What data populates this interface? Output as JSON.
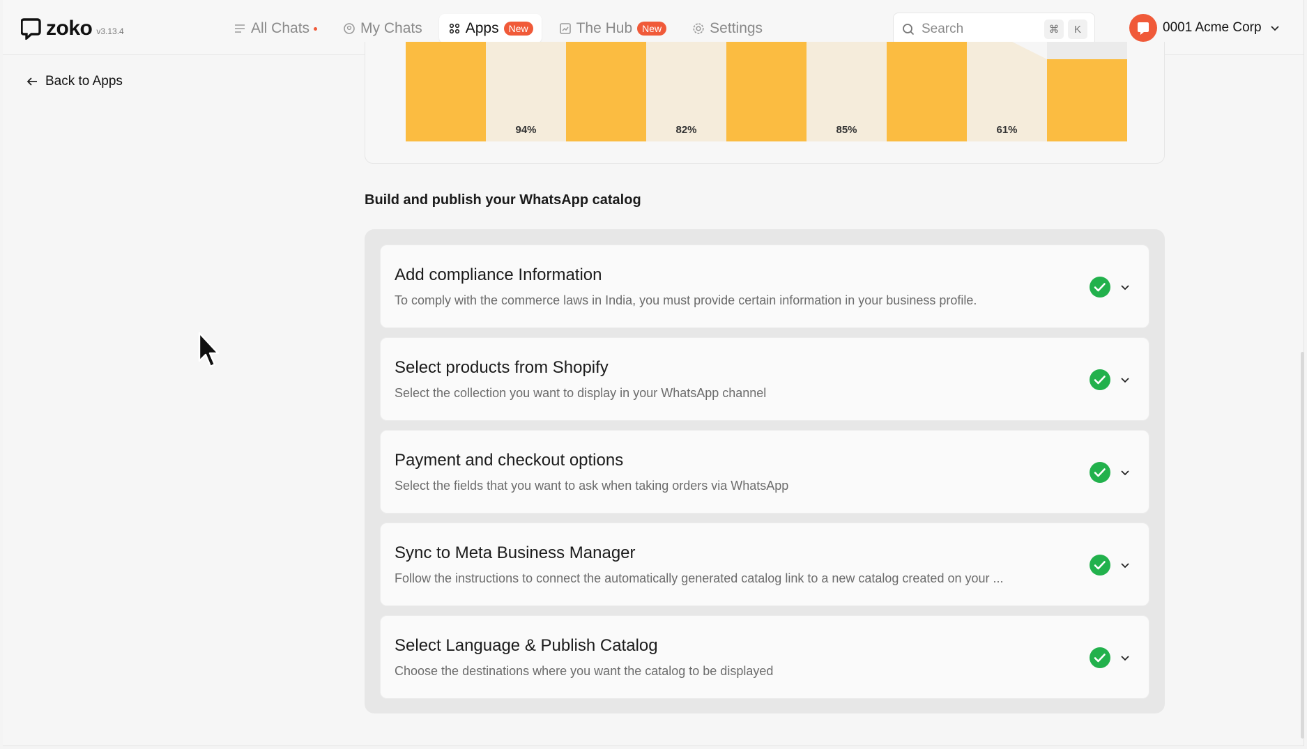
{
  "header": {
    "brand": "zoko",
    "version": "v3.13.4",
    "nav": [
      {
        "label": "All Chats",
        "icon": "list-icon",
        "dot": true,
        "badge": ""
      },
      {
        "label": "My Chats",
        "icon": "chat-icon",
        "badge": ""
      },
      {
        "label": "Apps",
        "icon": "apps-grid-icon",
        "badge": "New",
        "active": true
      },
      {
        "label": "The Hub",
        "icon": "chart-icon",
        "badge": "New"
      },
      {
        "label": "Settings",
        "icon": "gear-icon",
        "badge": ""
      }
    ],
    "search": {
      "label": "Search",
      "shortcut_1": "⌘",
      "shortcut_2": "K"
    },
    "account": {
      "name": "0001 Acme Corp"
    }
  },
  "back_link": "Back to Apps",
  "chart_data": {
    "type": "bar",
    "bars": [
      {
        "kind": "value"
      },
      {
        "kind": "drop",
        "label": "94%"
      },
      {
        "kind": "value"
      },
      {
        "kind": "drop",
        "label": "82%"
      },
      {
        "kind": "value"
      },
      {
        "kind": "drop",
        "label": "85%"
      },
      {
        "kind": "value"
      },
      {
        "kind": "drop",
        "label": "61%"
      },
      {
        "kind": "value"
      }
    ],
    "colors": {
      "bar": "#fbbc41",
      "drop": "#f5ecdb",
      "empty": "#ebebeb"
    }
  },
  "section": {
    "title": "Build and publish your WhatsApp catalog",
    "steps": [
      {
        "title": "Add compliance Information",
        "desc": "To comply with the commerce laws in India, you must provide certain information in your business profile.",
        "done": true
      },
      {
        "title": "Select products from Shopify",
        "desc": "Select the collection you want to display in your WhatsApp channel",
        "done": true
      },
      {
        "title": "Payment and checkout options",
        "desc": "Select the fields that you want to ask when taking orders via WhatsApp",
        "done": true
      },
      {
        "title": "Sync to Meta Business Manager",
        "desc": "Follow the instructions to connect the automatically generated catalog link to a new catalog created on your ...",
        "done": true
      },
      {
        "title": "Select Language & Publish Catalog",
        "desc": "Choose the destinations where you want the catalog to be displayed",
        "done": true
      }
    ]
  },
  "colors": {
    "accent": "#f05a39",
    "success": "#22b14c"
  }
}
